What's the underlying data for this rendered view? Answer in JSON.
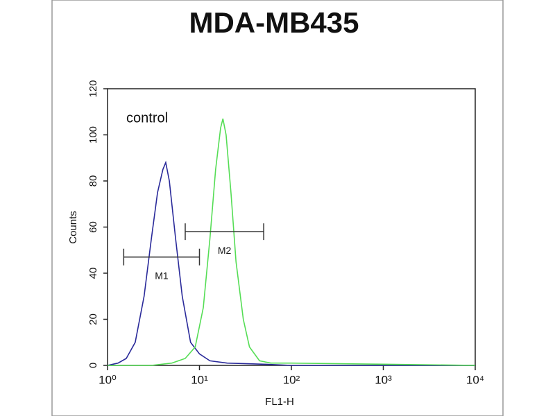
{
  "chart_data": {
    "type": "line",
    "title": "MDA-MB435",
    "xlabel": "FL1-H",
    "ylabel": "Counts",
    "xscale": "log",
    "xlim": [
      1,
      10000
    ],
    "xticks": [
      {
        "value": 1,
        "label": "10⁰"
      },
      {
        "value": 10,
        "label": "10¹"
      },
      {
        "value": 100,
        "label": "10²"
      },
      {
        "value": 1000,
        "label": "10³"
      },
      {
        "value": 10000,
        "label": "10⁴"
      }
    ],
    "ylim": [
      0,
      120
    ],
    "yticks": [
      0,
      20,
      40,
      60,
      80,
      100,
      120
    ],
    "annotations": [
      {
        "text": "control",
        "x": 1.6,
        "y": 107
      }
    ],
    "markers": [
      {
        "label": "M1",
        "x": [
          1.5,
          10
        ],
        "y": 47
      },
      {
        "label": "M2",
        "x": [
          7,
          50
        ],
        "y": 58
      }
    ],
    "series": [
      {
        "color": "#2a2a9a",
        "x": [
          1,
          1.3,
          1.6,
          2,
          2.5,
          3,
          3.5,
          4,
          4.3,
          4.7,
          5.5,
          6.5,
          8,
          10,
          13,
          20,
          50,
          100,
          1000,
          10000
        ],
        "values": [
          0,
          1,
          3,
          10,
          30,
          55,
          75,
          85,
          88,
          80,
          55,
          30,
          10,
          5,
          2,
          1,
          0.5,
          0,
          0,
          0
        ]
      },
      {
        "color": "#55dd55",
        "x": [
          1,
          3,
          5,
          7,
          9,
          11,
          13,
          15,
          17,
          18,
          19.5,
          22,
          25,
          30,
          35,
          45,
          60,
          100,
          1000,
          10000
        ],
        "values": [
          0,
          0,
          1,
          3,
          8,
          25,
          55,
          85,
          103,
          107,
          100,
          75,
          45,
          20,
          8,
          2,
          1,
          1,
          0.5,
          0
        ]
      }
    ]
  }
}
